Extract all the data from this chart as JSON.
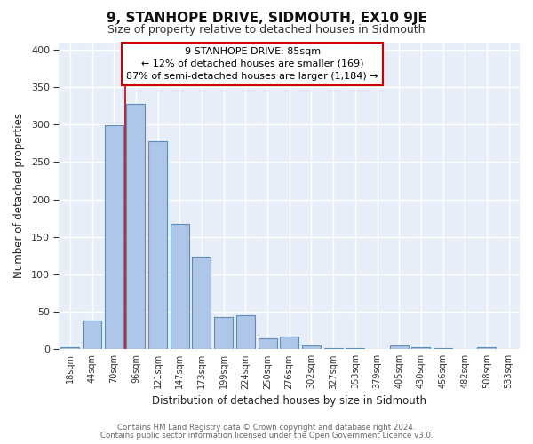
{
  "title": "9, STANHOPE DRIVE, SIDMOUTH, EX10 9JE",
  "subtitle": "Size of property relative to detached houses in Sidmouth",
  "xlabel": "Distribution of detached houses by size in Sidmouth",
  "ylabel": "Number of detached properties",
  "bar_labels": [
    "18sqm",
    "44sqm",
    "70sqm",
    "96sqm",
    "121sqm",
    "147sqm",
    "173sqm",
    "199sqm",
    "224sqm",
    "250sqm",
    "276sqm",
    "302sqm",
    "327sqm",
    "353sqm",
    "379sqm",
    "405sqm",
    "430sqm",
    "456sqm",
    "482sqm",
    "508sqm",
    "533sqm"
  ],
  "bar_values": [
    3,
    38,
    299,
    328,
    278,
    168,
    124,
    43,
    46,
    15,
    17,
    5,
    1,
    1,
    0,
    5,
    3,
    1,
    0,
    3,
    0
  ],
  "bar_color": "#aec6e8",
  "bar_edge_color": "#5b8db8",
  "ylim": [
    0,
    410
  ],
  "yticks": [
    0,
    50,
    100,
    150,
    200,
    250,
    300,
    350,
    400
  ],
  "vline_color": "#cc0000",
  "annotation_title": "9 STANHOPE DRIVE: 85sqm",
  "annotation_line1": "← 12% of detached houses are smaller (169)",
  "annotation_line2": "87% of semi-detached houses are larger (1,184) →",
  "annotation_box_color": "#ffffff",
  "annotation_border_color": "#cc0000",
  "fig_bg_color": "#ffffff",
  "plot_bg_color": "#e8eef8",
  "grid_color": "#ffffff",
  "footer1": "Contains HM Land Registry data © Crown copyright and database right 2024.",
  "footer2": "Contains public sector information licensed under the Open Government Licence v3.0."
}
